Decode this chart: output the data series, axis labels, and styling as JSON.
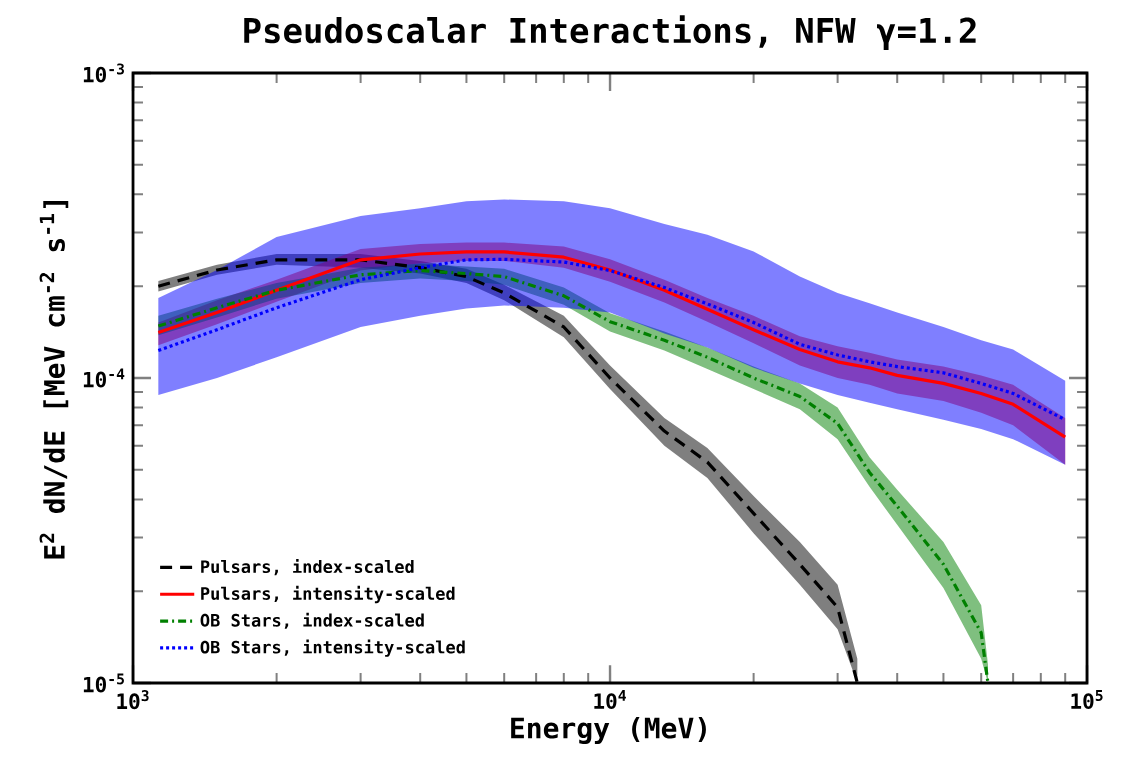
{
  "chart_data": {
    "type": "line",
    "title": "Pseudoscalar Interactions, NFW γ=1.2",
    "xlabel": "Energy (MeV)",
    "ylabel": "E$^{2}$ dN/dE [MeV cm$^{-2}$ s$^{-1}$]",
    "log": "xy",
    "legend": "bottom left",
    "grid": false,
    "xlim": [
      1000,
      100000
    ],
    "ylim": [
      1e-05,
      0.001
    ],
    "xticks": [
      {
        "value": 1000,
        "label": "10$^{3}$"
      },
      {
        "value": 10000,
        "label": "10$^{4}$"
      },
      {
        "value": 100000,
        "label": "10$^{5}$"
      }
    ],
    "yticks": [
      {
        "value": 1e-05,
        "label": "10$^{-5}$"
      },
      {
        "value": 0.0001,
        "label": "10$^{-4}$"
      },
      {
        "value": 0.001,
        "label": "10$^{-3}$"
      }
    ],
    "x": [
      1130,
      1500,
      2000,
      3000,
      4000,
      5000,
      6000,
      8000,
      10000,
      13000,
      16000,
      20000,
      25000,
      30000,
      35000,
      40000,
      50000,
      60000,
      70000,
      90000
    ],
    "series": [
      {
        "name": "Pulsars, index-scaled",
        "color": "#000000",
        "line_style": "dashed",
        "x": [
          1130,
          1500,
          2000,
          3000,
          4000,
          5000,
          6000,
          8000,
          10000,
          13000,
          16000,
          20000,
          25000,
          30000,
          33000
        ],
        "values": [
          0.0002,
          0.000226,
          0.000244,
          0.000244,
          0.00023,
          0.000215,
          0.00019,
          0.000147,
          0.0001,
          6.7e-05,
          5.3e-05,
          3.6e-05,
          2.45e-05,
          1.77e-05,
          1e-05
        ],
        "upper": [
          0.000208,
          0.000235,
          0.000255,
          0.000255,
          0.000242,
          0.000228,
          0.000202,
          0.00016,
          0.00011,
          7.4e-05,
          5.9e-05,
          4.1e-05,
          2.9e-05,
          2.1e-05,
          1.2e-05
        ],
        "lower": [
          0.000192,
          0.000218,
          0.000235,
          0.00023,
          0.00022,
          0.000205,
          0.00018,
          0.000136,
          9.2e-05,
          6e-05,
          4.7e-05,
          3.1e-05,
          2.1e-05,
          1.5e-05,
          1e-05
        ]
      },
      {
        "name": "Pulsars, intensity-scaled",
        "color": "#ff0000",
        "line_style": "solid",
        "values": [
          0.000141,
          0.000164,
          0.000194,
          0.000244,
          0.000255,
          0.000259,
          0.000259,
          0.000249,
          0.000226,
          0.000194,
          0.000168,
          0.000144,
          0.000124,
          0.000113,
          0.000108,
          0.000102,
          9.6e-05,
          8.9e-05,
          8.2e-05,
          6.4e-05
        ],
        "upper": [
          0.000152,
          0.00018,
          0.00021,
          0.000265,
          0.000275,
          0.000278,
          0.000278,
          0.00027,
          0.000245,
          0.00021,
          0.000183,
          0.00016,
          0.000137,
          0.000127,
          0.000121,
          0.000115,
          0.000109,
          0.000102,
          9.5e-05,
          7.4e-05
        ],
        "lower": [
          0.000128,
          0.00015,
          0.000178,
          0.000225,
          0.000238,
          0.000242,
          0.000242,
          0.00023,
          0.000207,
          0.000177,
          0.000153,
          0.00013,
          0.00011,
          0.0001,
          9.5e-05,
          8.9e-05,
          8.4e-05,
          7.7e-05,
          7e-05,
          5.2e-05
        ]
      },
      {
        "name": "OB Stars, index-scaled",
        "color": "#008000",
        "line_style": "dashdot",
        "x": [
          1130,
          1500,
          2000,
          3000,
          4000,
          5000,
          6000,
          8000,
          10000,
          13000,
          16000,
          20000,
          25000,
          30000,
          35000,
          40000,
          50000,
          60000,
          62000
        ],
        "values": [
          0.000148,
          0.00017,
          0.000194,
          0.000218,
          0.000225,
          0.00022,
          0.000215,
          0.000186,
          0.000153,
          0.000133,
          0.000117,
          0.0001,
          8.7e-05,
          7.1e-05,
          4.9e-05,
          3.8e-05,
          2.45e-05,
          1.46e-05,
          1e-05
        ],
        "upper": [
          0.00016,
          0.000182,
          0.000205,
          0.00023,
          0.000237,
          0.000232,
          0.000228,
          0.000198,
          0.000163,
          0.000142,
          0.000126,
          0.000109,
          9.6e-05,
          8e-05,
          5.5e-05,
          4.3e-05,
          2.9e-05,
          1.8e-05,
          1.15e-05
        ],
        "lower": [
          0.000138,
          0.000158,
          0.000182,
          0.000205,
          0.000212,
          0.000208,
          0.000202,
          0.000174,
          0.000142,
          0.000123,
          0.000107,
          9.2e-05,
          7.9e-05,
          6.3e-05,
          4.4e-05,
          3.3e-05,
          2.05e-05,
          1.2e-05,
          1e-05
        ]
      },
      {
        "name": "OB Stars, intensity-scaled",
        "color": "#0000ff",
        "line_style": "dotted",
        "values": [
          0.000123,
          0.000144,
          0.00017,
          0.00021,
          0.00023,
          0.000244,
          0.000245,
          0.00024,
          0.000225,
          0.000198,
          0.000175,
          0.000152,
          0.000129,
          0.000119,
          0.000113,
          0.000109,
          0.000104,
          9.6e-05,
          8.9e-05,
          7.3e-05
        ],
        "upper": [
          0.000183,
          0.000226,
          0.00029,
          0.00034,
          0.00036,
          0.00038,
          0.000385,
          0.00038,
          0.00036,
          0.00032,
          0.000295,
          0.00026,
          0.000215,
          0.00019,
          0.000176,
          0.000164,
          0.000147,
          0.000133,
          0.000124,
          9.8e-05
        ],
        "lower": [
          8.8e-05,
          0.0001,
          0.000117,
          0.000147,
          0.00016,
          0.000169,
          0.000173,
          0.00017,
          0.000164,
          0.00014,
          0.000126,
          0.000108,
          9.6e-05,
          8.8e-05,
          8.3e-05,
          7.9e-05,
          7.3e-05,
          6.8e-05,
          6.3e-05,
          5.2e-05
        ]
      }
    ]
  }
}
